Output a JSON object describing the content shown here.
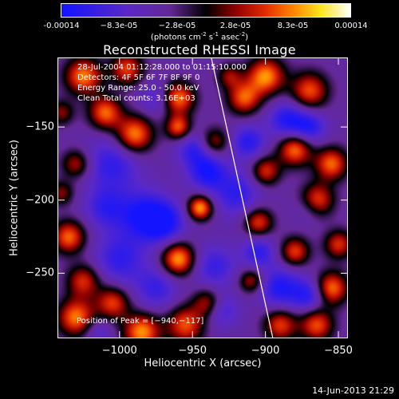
{
  "colorbar": {
    "tick_labels": [
      "-0.00014",
      "−8.3e-05",
      "−2.8e-05",
      "2.8e-05",
      "8.3e-05",
      "0.00014"
    ],
    "unit_prefix": "(photons cm",
    "unit_exp1": "-2",
    "unit_mid1": " s",
    "unit_exp2": "-1",
    "unit_mid2": " asec",
    "unit_exp3": "-2",
    "unit_suffix": ")",
    "colormap": "blue-purple-red-yellow-white"
  },
  "chart_data": {
    "type": "heatmap",
    "title": "Reconstructed RHESSI Image",
    "xlabel": "Heliocentric X (arcsec)",
    "ylabel": "Heliocentric Y (arcsec)",
    "xlim": [
      -1042,
      -844
    ],
    "ylim": [
      -294,
      -103
    ],
    "xticks": [
      -1000,
      -950,
      -900,
      -850
    ],
    "xtick_labels": [
      "−1000",
      "−950",
      "−900",
      "−850"
    ],
    "yticks": [
      -150,
      -200,
      -250
    ],
    "ytick_labels": [
      "−150",
      "−200",
      "−250"
    ],
    "value_range": [
      -0.00014,
      0.00014
    ],
    "limb_line": {
      "x": [
        -937,
        -895
      ],
      "y": [
        -103,
        -294
      ]
    },
    "annotations": {
      "time": "28-Jul-2004 01:12:28.000 to 01:15:10.000",
      "detectors": "Detectors: 4F 5F 6F 7F 8F 9F 0",
      "energy": "Energy Range: 25.0 - 50.0 keV",
      "method": "Clean    Total counts: 3.16E+03",
      "peak": "Position of Peak = [−940,−117]"
    }
  },
  "timestamp": "14-Jun-2013 21:29"
}
